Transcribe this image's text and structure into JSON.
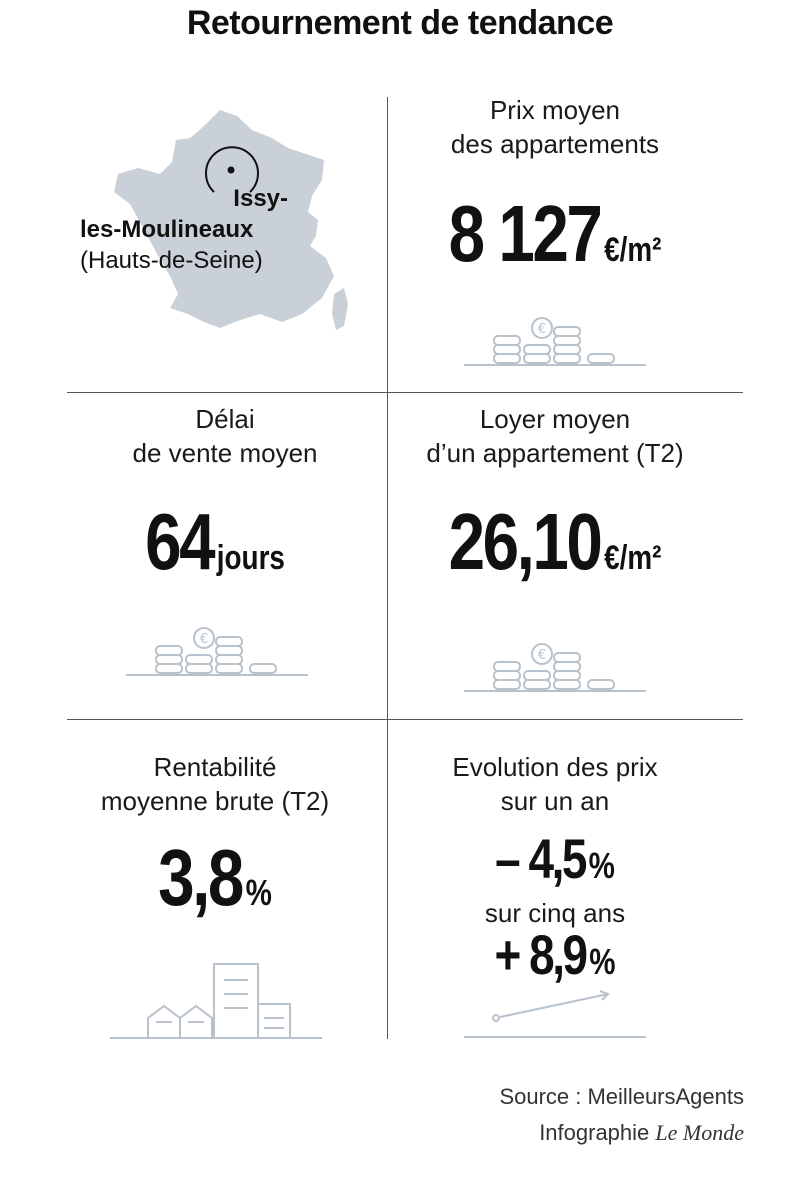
{
  "title": "Retournement de tendance",
  "location": {
    "name_line1": "Issy-",
    "name_line2": "les-Moulineaux",
    "department": "(Hauts-de-Seine)"
  },
  "panels": {
    "prix": {
      "label_line1": "Prix moyen",
      "label_line2": "des appartements",
      "value": "8 127",
      "unit": "€/m²"
    },
    "delai": {
      "label_line1": "Délai",
      "label_line2": "de vente moyen",
      "value": "64",
      "unit": "jours"
    },
    "loyer": {
      "label_line1": "Loyer moyen",
      "label_line2": "d’un appartement (T2)",
      "value": "26,10",
      "unit": "€/m²"
    },
    "rentabilite": {
      "label_line1": "Rentabilité",
      "label_line2": "moyenne brute (T2)",
      "value": "3,8",
      "unit": "%"
    },
    "evolution": {
      "label_line1": "Evolution des prix",
      "label_line2": "sur un an",
      "one_year_value": "– 4,5",
      "one_year_unit": "%",
      "five_year_label": "sur cinq ans",
      "five_year_value": "+ 8,9",
      "five_year_unit": "%"
    }
  },
  "source": "Source : MeilleursAgents",
  "credit_prefix": "Infographie",
  "credit_name": "Le Monde",
  "colors": {
    "map_fill": "#c9d0d8",
    "icon_stroke": "#b8c2cc",
    "text": "#111111",
    "divider": "#555555"
  }
}
